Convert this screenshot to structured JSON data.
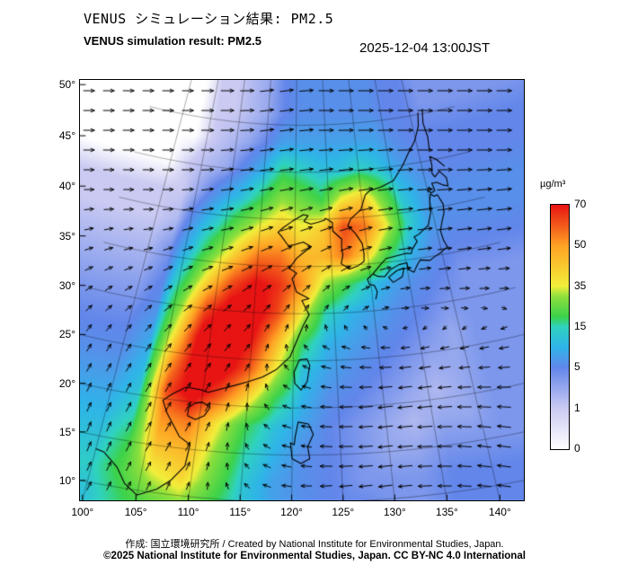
{
  "header": {
    "title_ja": "VENUS シミュレーション結果: PM2.5",
    "title_en": "VENUS simulation result: PM2.5",
    "timestamp": "2025-12-04 13:00JST"
  },
  "axes": {
    "lat_ticks": [
      50,
      45,
      40,
      35,
      30,
      25,
      20,
      15,
      10
    ],
    "lon_ticks": [
      100,
      105,
      110,
      115,
      120,
      125,
      130,
      135,
      140
    ],
    "degree_symbol": "°"
  },
  "colorbar": {
    "unit": "µg/m³",
    "tick_labels": [
      "70",
      "50",
      "35",
      "15",
      "5",
      "1",
      "0"
    ]
  },
  "footer": {
    "credit": "作成: 国立環境研究所 / Created by National Institute for Environmental Studies, Japan.",
    "copyright": "©2025 National Institute for Environmental Studies, Japan. CC BY-NC 4.0 International"
  },
  "chart_data": {
    "type": "heatmap",
    "title": "VENUS simulation result: PM2.5",
    "unit": "µg/m³",
    "lon_range": [
      100,
      142
    ],
    "lat_range": [
      9,
      51
    ],
    "legend_boundaries": [
      0,
      1,
      5,
      15,
      35,
      50,
      70
    ],
    "color_scale": {
      "values": [
        0,
        1,
        5,
        10,
        15,
        20,
        30,
        35,
        50,
        60,
        70
      ],
      "colors": [
        "#ffffff",
        "#cacaf2",
        "#6286ea",
        "#2fb4e8",
        "#2fd2c0",
        "#3cd24b",
        "#8ee03c",
        "#f2ee3a",
        "#ffa224",
        "#f2581a",
        "#e81414"
      ]
    },
    "pm25_grid": {
      "lon0": 100,
      "dlon": 3,
      "lat0": 9,
      "dlat": 3,
      "values": [
        [
          12,
          18,
          24,
          28,
          20,
          12,
          8,
          6,
          5,
          5,
          4,
          4,
          5,
          5,
          5
        ],
        [
          14,
          22,
          34,
          40,
          26,
          13,
          8,
          6,
          5,
          4,
          4,
          4,
          5,
          5,
          5
        ],
        [
          12,
          20,
          44,
          46,
          30,
          16,
          10,
          6,
          5,
          4,
          3,
          3,
          4,
          4,
          4
        ],
        [
          10,
          15,
          52,
          56,
          36,
          20,
          12,
          8,
          5,
          4,
          3,
          2,
          3,
          3,
          4
        ],
        [
          8,
          12,
          62,
          76,
          60,
          40,
          20,
          10,
          6,
          5,
          4,
          3,
          2,
          3,
          4
        ],
        [
          6,
          10,
          52,
          78,
          76,
          60,
          35,
          12,
          8,
          6,
          5,
          4,
          3,
          3,
          4
        ],
        [
          5,
          8,
          40,
          76,
          78,
          70,
          46,
          20,
          10,
          8,
          6,
          5,
          4,
          3,
          4
        ],
        [
          4,
          6,
          30,
          62,
          76,
          76,
          62,
          36,
          15,
          10,
          8,
          6,
          5,
          4,
          4
        ],
        [
          3,
          5,
          20,
          42,
          62,
          72,
          66,
          52,
          30,
          20,
          12,
          8,
          6,
          5,
          4
        ],
        [
          2,
          4,
          12,
          26,
          42,
          56,
          56,
          46,
          46,
          56,
          40,
          20,
          10,
          6,
          5
        ],
        [
          1,
          2,
          8,
          15,
          26,
          36,
          42,
          36,
          42,
          62,
          56,
          36,
          15,
          8,
          6
        ],
        [
          1,
          1,
          4,
          8,
          12,
          20,
          30,
          26,
          20,
          36,
          42,
          26,
          12,
          8,
          6
        ],
        [
          0,
          1,
          2,
          3,
          6,
          10,
          18,
          15,
          12,
          12,
          15,
          12,
          8,
          6,
          5
        ],
        [
          0,
          0,
          1,
          2,
          3,
          5,
          8,
          8,
          8,
          8,
          8,
          8,
          6,
          5,
          5
        ],
        [
          0,
          0,
          1,
          1,
          2,
          3,
          5,
          6,
          6,
          6,
          6,
          6,
          5,
          5,
          4
        ]
      ]
    },
    "wind_grid": {
      "lon0": 100,
      "dlon": 5,
      "lat0": 10,
      "dlat": 5,
      "u": [
        [
          2,
          2,
          1,
          -2,
          -5,
          -7,
          -8,
          -8,
          -8
        ],
        [
          2,
          3,
          2,
          -1,
          -5,
          -8,
          -9,
          -9,
          -8
        ],
        [
          2,
          3,
          3,
          0,
          -4,
          -7,
          -9,
          -9,
          -8
        ],
        [
          2,
          3,
          3,
          2,
          -2,
          -5,
          -6,
          -5,
          -4
        ],
        [
          3,
          4,
          4,
          3,
          2,
          1,
          2,
          3,
          4
        ],
        [
          4,
          5,
          6,
          6,
          5,
          5,
          6,
          7,
          8
        ],
        [
          5,
          6,
          7,
          7,
          7,
          7,
          8,
          9,
          10
        ],
        [
          6,
          7,
          7,
          8,
          8,
          8,
          9,
          10,
          10
        ],
        [
          6,
          7,
          8,
          8,
          8,
          9,
          9,
          10,
          10
        ]
      ],
      "v": [
        [
          4,
          4,
          3,
          2,
          0,
          -1,
          -1,
          0,
          1
        ],
        [
          5,
          5,
          4,
          2,
          1,
          0,
          -1,
          0,
          1
        ],
        [
          4,
          5,
          5,
          3,
          1,
          0,
          -1,
          -1,
          0
        ],
        [
          3,
          4,
          4,
          3,
          2,
          1,
          0,
          -1,
          -1
        ],
        [
          2,
          3,
          3,
          3,
          3,
          2,
          1,
          0,
          0
        ],
        [
          1,
          2,
          2,
          3,
          3,
          3,
          2,
          1,
          1
        ],
        [
          0,
          1,
          1,
          2,
          2,
          2,
          2,
          1,
          1
        ],
        [
          0,
          0,
          1,
          1,
          1,
          1,
          1,
          1,
          0
        ],
        [
          0,
          0,
          0,
          1,
          1,
          0,
          0,
          0,
          0
        ]
      ]
    },
    "coastlines": [
      [
        [
          100,
          13.6
        ],
        [
          100.9,
          13.4
        ],
        [
          102.5,
          12.1
        ],
        [
          103.6,
          10.5
        ],
        [
          105,
          9.5
        ],
        [
          106.8,
          10.4
        ],
        [
          108,
          11.5
        ],
        [
          109.2,
          13.2
        ],
        [
          109.4,
          15.5
        ],
        [
          108.2,
          16.2
        ],
        [
          106.5,
          18.5
        ],
        [
          105.8,
          19.8
        ],
        [
          106.7,
          20.6
        ],
        [
          108.1,
          21.5
        ],
        [
          109.7,
          21.4
        ],
        [
          110.6,
          21.2
        ],
        [
          113.6,
          22.2
        ],
        [
          114.8,
          22.6
        ],
        [
          116.5,
          23.2
        ],
        [
          118,
          24
        ],
        [
          119.6,
          25.4
        ],
        [
          120.1,
          26.5
        ],
        [
          120.7,
          27.8
        ],
        [
          121.2,
          28.8
        ],
        [
          121.9,
          29.9
        ],
        [
          121.4,
          30.7
        ],
        [
          121,
          31.4
        ],
        [
          121.9,
          31.6
        ],
        [
          120.3,
          32.3
        ],
        [
          119.7,
          33.7
        ],
        [
          120.3,
          34.3
        ],
        [
          119.3,
          34.8
        ],
        [
          120.3,
          35.9
        ],
        [
          121.4,
          36.6
        ],
        [
          122.3,
          37.1
        ],
        [
          121.2,
          37.6
        ],
        [
          119.9,
          37.3
        ],
        [
          119.1,
          37.2
        ],
        [
          118.1,
          38.2
        ],
        [
          117.6,
          38.6
        ],
        [
          118.3,
          39.1
        ],
        [
          119.6,
          39.8
        ],
        [
          121.2,
          40.5
        ],
        [
          121.9,
          40.4
        ],
        [
          121.3,
          39.8
        ],
        [
          122.3,
          39.5
        ],
        [
          123.4,
          39.7
        ],
        [
          124.3,
          39.9
        ],
        [
          124.4,
          40.1
        ]
      ],
      [
        [
          124.4,
          40.1
        ],
        [
          125.4,
          39.6
        ],
        [
          125.4,
          38.7
        ],
        [
          126.6,
          37.8
        ],
        [
          126.5,
          37
        ],
        [
          126.6,
          36.1
        ],
        [
          126.3,
          35.2
        ],
        [
          127.4,
          34.6
        ],
        [
          128.6,
          34.9
        ],
        [
          129.4,
          35.3
        ],
        [
          129.5,
          36.1
        ],
        [
          129.4,
          37.2
        ],
        [
          128.6,
          38.3
        ],
        [
          127.6,
          39.2
        ],
        [
          128.1,
          39.9
        ],
        [
          129.7,
          40.8
        ],
        [
          130.6,
          42.3
        ],
        [
          131.3,
          42.7
        ],
        [
          133.2,
          43
        ],
        [
          135.2,
          43.5
        ],
        [
          137,
          44.9
        ],
        [
          138.4,
          46.2
        ],
        [
          139.8,
          47.3
        ],
        [
          141,
          48.8
        ],
        [
          141.5,
          50.2
        ]
      ],
      [
        [
          130.4,
          31.2
        ],
        [
          130.7,
          32
        ],
        [
          130.4,
          32.7
        ],
        [
          129.8,
          32.8
        ],
        [
          129.6,
          33.4
        ],
        [
          130.4,
          33.9
        ],
        [
          131,
          33.6
        ],
        [
          131.9,
          33.5
        ],
        [
          132.8,
          34.2
        ],
        [
          134,
          34.6
        ],
        [
          135.1,
          34.7
        ],
        [
          135.1,
          34
        ],
        [
          135.8,
          33.6
        ],
        [
          136.3,
          34.2
        ],
        [
          136.9,
          34.8
        ],
        [
          138.2,
          34.6
        ],
        [
          138.9,
          34.9
        ],
        [
          139.8,
          35.2
        ],
        [
          140.4,
          35.5
        ],
        [
          140.9,
          35.7
        ],
        [
          140.6,
          36.5
        ],
        [
          140.5,
          37.5
        ],
        [
          141,
          38.4
        ],
        [
          141.6,
          39.3
        ],
        [
          141.8,
          40.2
        ],
        [
          141.3,
          41.3
        ],
        [
          140.8,
          41.2
        ],
        [
          140.3,
          41.5
        ],
        [
          139.9,
          40.6
        ],
        [
          139.8,
          39.7
        ],
        [
          139,
          38.3
        ],
        [
          137.4,
          37.5
        ],
        [
          136.7,
          37.3
        ],
        [
          137,
          36.8
        ],
        [
          136.1,
          36
        ],
        [
          135.9,
          35.6
        ],
        [
          135.2,
          35.7
        ],
        [
          133.3,
          35.5
        ],
        [
          132.4,
          35.4
        ],
        [
          131.4,
          34.7
        ],
        [
          130.9,
          34.3
        ],
        [
          130.4,
          33.9
        ]
      ],
      [
        [
          140.4,
          42.3
        ],
        [
          140,
          41.9
        ],
        [
          140.5,
          41.6
        ],
        [
          141.1,
          41.8
        ],
        [
          140.9,
          42.6
        ],
        [
          141.7,
          42.6
        ],
        [
          142.5,
          42.2
        ],
        [
          143.2,
          42
        ],
        [
          143.3,
          42.9
        ],
        [
          142.5,
          43.7
        ],
        [
          141.6,
          43.2
        ],
        [
          141.3,
          43.6
        ],
        [
          141.6,
          44.5
        ],
        [
          141.6,
          45.4
        ],
        [
          142.5,
          45
        ],
        [
          143.5,
          44.1
        ]
      ],
      [
        [
          132.9,
          32.8
        ],
        [
          134.2,
          33.3
        ],
        [
          134.6,
          34.2
        ],
        [
          133.6,
          34
        ],
        [
          132.4,
          33.4
        ],
        [
          132.9,
          32.8
        ]
      ],
      [
        [
          120.2,
          22.6
        ],
        [
          120.9,
          21.9
        ],
        [
          121.6,
          22.8
        ],
        [
          121.9,
          24.5
        ],
        [
          121.6,
          25.2
        ],
        [
          120.7,
          25.1
        ],
        [
          120.1,
          23.8
        ],
        [
          120.2,
          22.6
        ]
      ],
      [
        [
          108.7,
          18.5
        ],
        [
          109.6,
          18.2
        ],
        [
          110.5,
          18.7
        ],
        [
          111,
          19.6
        ],
        [
          110.1,
          20.1
        ],
        [
          109.3,
          19.9
        ],
        [
          108.7,
          19.4
        ],
        [
          108.7,
          18.5
        ]
      ],
      [
        [
          120,
          14.6
        ],
        [
          119.8,
          16.3
        ],
        [
          120.2,
          16.1
        ],
        [
          120.3,
          17
        ],
        [
          120.6,
          18.5
        ],
        [
          121.7,
          18.3
        ],
        [
          122.2,
          17.2
        ],
        [
          121.6,
          15.9
        ],
        [
          121.8,
          14.6
        ],
        [
          120.9,
          14.1
        ],
        [
          120,
          14.6
        ]
      ],
      [
        [
          141.8,
          46.1
        ],
        [
          142.1,
          47.5
        ],
        [
          141.9,
          49
        ],
        [
          142.4,
          50.5
        ]
      ]
    ]
  }
}
